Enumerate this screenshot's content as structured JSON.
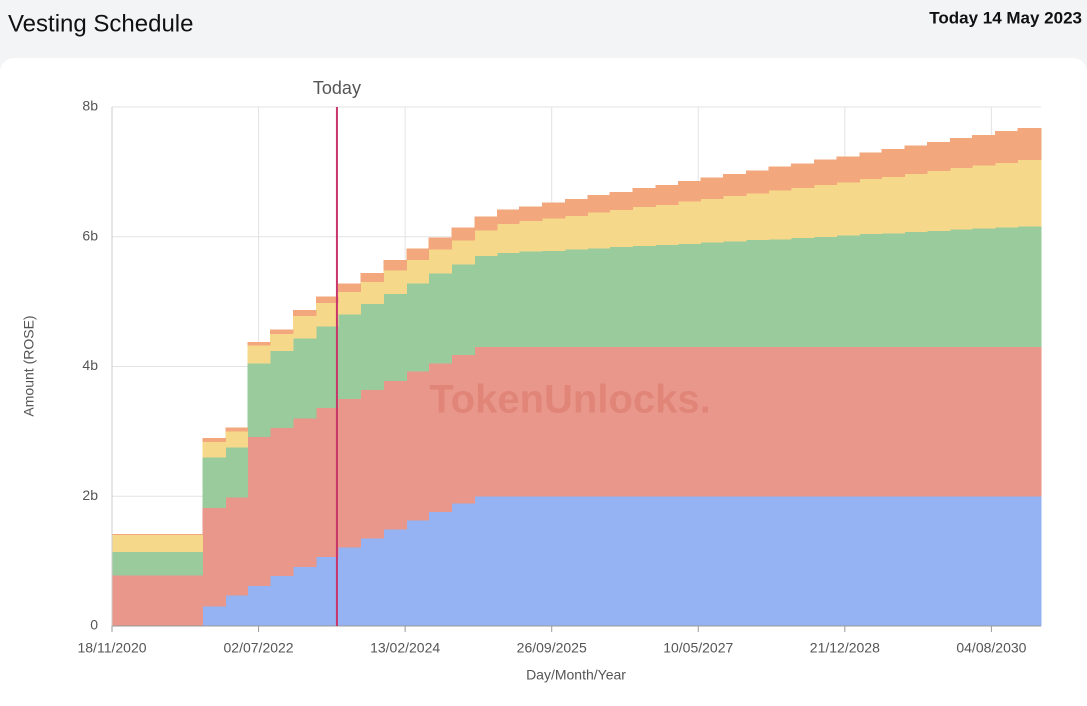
{
  "header": {
    "title": "Vesting Schedule",
    "date": "Today 14 May 2023"
  },
  "chart_data": {
    "type": "stacked-step-area",
    "y_label": "Amount (ROSE)",
    "x_label": "Day/Month/Year",
    "watermark": "TokenUnlocks.",
    "marker": {
      "label": "Today",
      "x": "14/05/2023",
      "color": "#c8356b"
    },
    "xlim": [
      "18/11/2020",
      "20/02/2031"
    ],
    "xticks": [
      "18/11/2020",
      "02/07/2022",
      "13/02/2024",
      "26/09/2025",
      "10/05/2027",
      "21/12/2028",
      "04/08/2030"
    ],
    "ylim": [
      0,
      8
    ],
    "yticks": [
      0,
      {
        "value": 2,
        "label": "2b"
      },
      {
        "value": 4,
        "label": "4b"
      },
      {
        "value": 6,
        "label": "6b"
      },
      {
        "value": 8,
        "label": "8b"
      }
    ],
    "grid": true,
    "x": [
      "18/11/2020",
      "18/11/2021",
      "18/02/2022",
      "18/05/2022",
      "18/08/2022",
      "18/11/2022",
      "18/02/2023",
      "18/05/2023",
      "18/08/2023",
      "18/11/2023",
      "18/02/2024",
      "18/05/2024",
      "18/08/2024",
      "18/11/2024",
      "18/02/2025",
      "18/05/2025",
      "18/08/2025",
      "18/11/2025",
      "18/02/2026",
      "18/05/2026",
      "18/08/2026",
      "18/11/2026",
      "18/02/2027",
      "18/05/2027",
      "18/08/2027",
      "18/11/2027",
      "18/02/2028",
      "18/05/2028",
      "18/08/2028",
      "18/11/2028",
      "18/02/2029",
      "18/05/2029",
      "18/08/2029",
      "18/11/2029",
      "18/02/2030",
      "18/05/2030",
      "18/08/2030",
      "18/11/2030"
    ],
    "series": [
      {
        "color": "#95b3f2",
        "values": [
          0,
          0.3,
          0.47,
          0.62,
          0.77,
          0.91,
          1.06,
          1.21,
          1.35,
          1.49,
          1.63,
          1.76,
          1.89,
          2.0,
          2.0,
          2.0,
          2.0,
          2.0,
          2.0,
          2.0,
          2.0,
          2.0,
          2.0,
          2.0,
          2.0,
          2.0,
          2.0,
          2.0,
          2.0,
          2.0,
          2.0,
          2.0,
          2.0,
          2.0,
          2.0,
          2.0,
          2.0,
          2.0
        ]
      },
      {
        "color": "#e8978a",
        "values": [
          0.78,
          1.52,
          1.51,
          2.29,
          2.28,
          2.29,
          2.3,
          2.29,
          2.29,
          2.29,
          2.29,
          2.29,
          2.29,
          2.3,
          2.3,
          2.3,
          2.3,
          2.3,
          2.3,
          2.3,
          2.3,
          2.3,
          2.3,
          2.3,
          2.3,
          2.3,
          2.3,
          2.3,
          2.3,
          2.3,
          2.3,
          2.3,
          2.3,
          2.3,
          2.3,
          2.3,
          2.3,
          2.3
        ]
      },
      {
        "color": "#9acb9d",
        "values": [
          0.36,
          0.78,
          0.77,
          1.14,
          1.19,
          1.23,
          1.26,
          1.3,
          1.32,
          1.34,
          1.36,
          1.38,
          1.39,
          1.4,
          1.45,
          1.47,
          1.48,
          1.5,
          1.52,
          1.54,
          1.56,
          1.57,
          1.59,
          1.61,
          1.63,
          1.65,
          1.66,
          1.68,
          1.7,
          1.72,
          1.74,
          1.75,
          1.77,
          1.79,
          1.81,
          1.83,
          1.84,
          1.86
        ]
      },
      {
        "color": "#f6d88a",
        "values": [
          0.26,
          0.24,
          0.25,
          0.27,
          0.26,
          0.35,
          0.36,
          0.35,
          0.34,
          0.36,
          0.36,
          0.37,
          0.37,
          0.4,
          0.45,
          0.47,
          0.5,
          0.52,
          0.55,
          0.57,
          0.6,
          0.62,
          0.65,
          0.67,
          0.7,
          0.72,
          0.75,
          0.77,
          0.8,
          0.82,
          0.85,
          0.87,
          0.9,
          0.92,
          0.95,
          0.97,
          1.0,
          1.02
        ]
      },
      {
        "color": "#f2a77d",
        "values": [
          0.02,
          0.06,
          0.06,
          0.06,
          0.07,
          0.09,
          0.1,
          0.13,
          0.14,
          0.16,
          0.18,
          0.19,
          0.2,
          0.21,
          0.22,
          0.23,
          0.25,
          0.26,
          0.27,
          0.28,
          0.29,
          0.31,
          0.32,
          0.33,
          0.34,
          0.35,
          0.37,
          0.38,
          0.39,
          0.4,
          0.41,
          0.43,
          0.44,
          0.45,
          0.46,
          0.47,
          0.49,
          0.5
        ]
      }
    ]
  }
}
